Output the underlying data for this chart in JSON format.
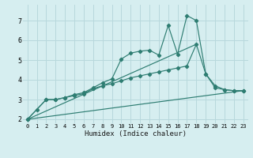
{
  "xlabel": "Humidex (Indice chaleur)",
  "background_color": "#d6eef0",
  "grid_color": "#b8d8dc",
  "line_color": "#2e7d72",
  "xlim": [
    -0.5,
    23.5
  ],
  "ylim": [
    1.8,
    7.8
  ],
  "yticks": [
    2,
    3,
    4,
    5,
    6,
    7
  ],
  "xticks": [
    0,
    1,
    2,
    3,
    4,
    5,
    6,
    7,
    8,
    9,
    10,
    11,
    12,
    13,
    14,
    15,
    16,
    17,
    18,
    19,
    20,
    21,
    22,
    23
  ],
  "series1": [
    [
      0,
      2.0
    ],
    [
      1,
      2.5
    ],
    [
      2,
      3.0
    ],
    [
      3,
      3.0
    ],
    [
      4,
      3.1
    ],
    [
      5,
      3.25
    ],
    [
      6,
      3.35
    ],
    [
      7,
      3.6
    ],
    [
      8,
      3.85
    ],
    [
      9,
      4.05
    ],
    [
      10,
      5.05
    ],
    [
      11,
      5.35
    ],
    [
      12,
      5.45
    ],
    [
      13,
      5.5
    ],
    [
      14,
      5.25
    ],
    [
      15,
      6.75
    ],
    [
      16,
      5.3
    ],
    [
      17,
      7.25
    ],
    [
      18,
      7.0
    ],
    [
      19,
      4.3
    ],
    [
      20,
      3.7
    ],
    [
      21,
      3.5
    ],
    [
      22,
      3.45
    ],
    [
      23,
      3.45
    ]
  ],
  "series2": [
    [
      0,
      2.0
    ],
    [
      2,
      3.0
    ],
    [
      3,
      3.0
    ],
    [
      4,
      3.1
    ],
    [
      5,
      3.2
    ],
    [
      6,
      3.3
    ],
    [
      7,
      3.55
    ],
    [
      8,
      3.7
    ],
    [
      9,
      3.8
    ],
    [
      10,
      3.95
    ],
    [
      11,
      4.1
    ],
    [
      12,
      4.2
    ],
    [
      13,
      4.3
    ],
    [
      14,
      4.4
    ],
    [
      15,
      4.5
    ],
    [
      16,
      4.6
    ],
    [
      17,
      4.7
    ],
    [
      18,
      5.8
    ],
    [
      19,
      4.3
    ],
    [
      20,
      3.6
    ],
    [
      21,
      3.5
    ],
    [
      22,
      3.45
    ],
    [
      23,
      3.45
    ]
  ],
  "line_straight1": [
    [
      0,
      2.0
    ],
    [
      23,
      3.45
    ]
  ],
  "line_straight2": [
    [
      0,
      2.0
    ],
    [
      18,
      5.8
    ]
  ]
}
